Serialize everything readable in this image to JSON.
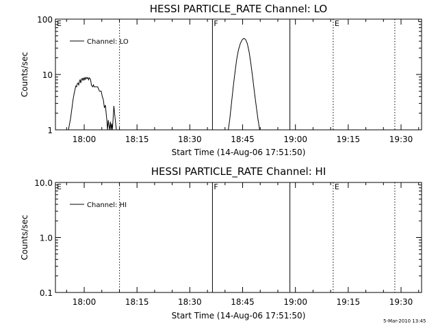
{
  "footer": {
    "timestamp": "5-Mar-2010 13:45"
  },
  "chart_data": [
    {
      "type": "line",
      "title": "HESSI PARTICLE_RATE Channel: LO",
      "xlabel": "Start Time (14-Aug-06 17:51:50)",
      "ylabel": "Counts/sec",
      "yscale": "log",
      "xlim_min": [
        0,
        104
      ],
      "ylim": [
        1,
        100
      ],
      "x_ticks": [
        {
          "min": 8.17,
          "label": "18:00"
        },
        {
          "min": 23.17,
          "label": "18:15"
        },
        {
          "min": 38.17,
          "label": "18:30"
        },
        {
          "min": 53.17,
          "label": "18:45"
        },
        {
          "min": 68.17,
          "label": "19:00"
        },
        {
          "min": 83.17,
          "label": "19:15"
        },
        {
          "min": 98.17,
          "label": "19:30"
        }
      ],
      "y_ticks": [
        {
          "value": 1,
          "label": "1"
        },
        {
          "value": 10,
          "label": "10"
        },
        {
          "value": 100,
          "label": "100"
        }
      ],
      "legend": {
        "entries": [
          "Channel: LO"
        ],
        "placement": "top-left"
      },
      "markers": [
        {
          "min": 0,
          "label": "E",
          "style": "none"
        },
        {
          "min": 18.2,
          "label": "",
          "style": "dotted"
        },
        {
          "min": 44.6,
          "label": "F",
          "style": "solid"
        },
        {
          "min": 66.6,
          "label": "",
          "style": "solid"
        },
        {
          "min": 78.9,
          "label": "E",
          "style": "dotted"
        },
        {
          "min": 96.4,
          "label": "",
          "style": "dotted"
        }
      ],
      "series": [
        {
          "name": "Channel: LO",
          "x": [
            3.7,
            4.3,
            4.7,
            5.0,
            5.3,
            5.6,
            5.8,
            6.0,
            6.2,
            6.4,
            6.6,
            6.8,
            7.0,
            7.2,
            7.4,
            7.6,
            7.8,
            8.0,
            8.2,
            8.4,
            8.6,
            8.8,
            9.0,
            9.2,
            9.4,
            9.6,
            9.8,
            10.0,
            10.2,
            10.4,
            10.6,
            10.8,
            11.0,
            11.5,
            12.0,
            12.5,
            13.0,
            13.3,
            13.6,
            13.9,
            14.2,
            14.4,
            14.6,
            14.8,
            15.0,
            15.2,
            15.4,
            15.6,
            15.8,
            16.0,
            16.2,
            16.4,
            16.6,
            16.8,
            17.0,
            17.3,
            17.6
          ],
          "y": [
            1.0,
            1.6,
            2.5,
            3.5,
            4.5,
            5.5,
            6.2,
            6.0,
            6.8,
            7.0,
            6.5,
            7.5,
            8.0,
            7.0,
            8.2,
            8.5,
            7.8,
            8.6,
            8.0,
            8.8,
            8.2,
            8.8,
            8.5,
            8.8,
            8.0,
            8.7,
            8.5,
            8.0,
            6.5,
            6.2,
            6.0,
            6.5,
            6.0,
            6.0,
            6.0,
            5.0,
            5.0,
            4.0,
            3.5,
            2.5,
            2.8,
            2.0,
            1.5,
            1.0,
            1.5,
            1.2,
            1.0,
            1.4,
            1.0,
            1.3,
            1.0,
            1.7,
            2.7,
            2.0,
            1.5,
            1.0,
            1.0
          ]
        },
        {
          "name": "Channel: LO",
          "x": [
            49.1,
            49.5,
            50.0,
            50.5,
            51.0,
            51.5,
            52.0,
            52.5,
            53.0,
            53.5,
            54.0,
            54.5,
            55.0,
            55.5,
            56.0,
            56.5,
            57.0,
            57.5,
            58.0
          ],
          "y": [
            1.0,
            1.5,
            3.0,
            6.0,
            11.0,
            19.0,
            28.0,
            36.0,
            42.0,
            45.0,
            43.0,
            36.0,
            26.0,
            16.0,
            9.0,
            5.0,
            2.8,
            1.6,
            1.0
          ]
        }
      ]
    },
    {
      "type": "line",
      "title": "HESSI PARTICLE_RATE Channel: HI",
      "xlabel": "Start Time (14-Aug-06 17:51:50)",
      "ylabel": "Counts/sec",
      "yscale": "log",
      "xlim_min": [
        0,
        104
      ],
      "ylim": [
        0.1,
        10.0
      ],
      "x_ticks": [
        {
          "min": 8.17,
          "label": "18:00"
        },
        {
          "min": 23.17,
          "label": "18:15"
        },
        {
          "min": 38.17,
          "label": "18:30"
        },
        {
          "min": 53.17,
          "label": "18:45"
        },
        {
          "min": 68.17,
          "label": "19:00"
        },
        {
          "min": 83.17,
          "label": "19:15"
        },
        {
          "min": 98.17,
          "label": "19:30"
        }
      ],
      "y_ticks": [
        {
          "value": 0.1,
          "label": "0.1"
        },
        {
          "value": 1.0,
          "label": "1.0"
        },
        {
          "value": 10.0,
          "label": "10.0"
        }
      ],
      "legend": {
        "entries": [
          "Channel: HI"
        ],
        "placement": "top-left"
      },
      "markers": [
        {
          "min": 0,
          "label": "E",
          "style": "none"
        },
        {
          "min": 18.2,
          "label": "",
          "style": "dotted"
        },
        {
          "min": 44.6,
          "label": "F",
          "style": "solid"
        },
        {
          "min": 66.6,
          "label": "",
          "style": "solid"
        },
        {
          "min": 78.9,
          "label": "E",
          "style": "dotted"
        },
        {
          "min": 96.4,
          "label": "",
          "style": "dotted"
        }
      ],
      "series": []
    }
  ]
}
